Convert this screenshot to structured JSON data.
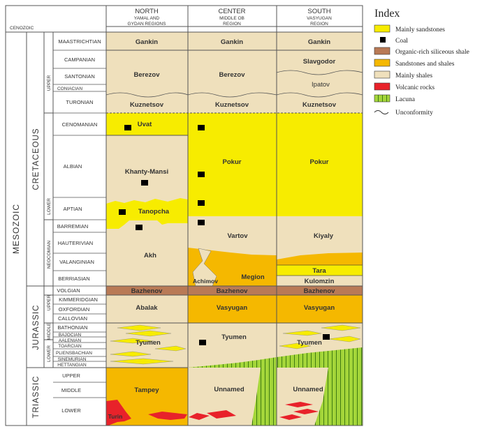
{
  "title": "",
  "header": {
    "cenozoic": "CENOZOIC",
    "columns": [
      {
        "title": "NORTH",
        "subtitle1": "YAMAL AND",
        "subtitle2": "GYDAN REGIONS"
      },
      {
        "title": "CENTER",
        "subtitle1": "MIDDLE OB",
        "subtitle2": "REGION"
      },
      {
        "title": "SOUTH",
        "subtitle1": "VASYUGAN",
        "subtitle2": "REGION"
      }
    ]
  },
  "eras": {
    "mesozoic": "MESOZOIC"
  },
  "periods": {
    "cretaceous": "CRETACEOUS",
    "jurassic": "JURASSIC",
    "triassic": "TRIASSIC"
  },
  "subdivisions": {
    "upper_k": "UPPER",
    "lower_k": "LOWER",
    "neocomian": "NEOCOMIAN",
    "upper_j": "UPPER",
    "middle_j": "MIDDLE",
    "lower_j": "LOWER"
  },
  "stages": {
    "maastrichtian": "MAASTRICHTIAN",
    "campanian": "CAMPANIAN",
    "santonian": "SANTONIAN",
    "coniacian": "CONIACIAN",
    "turonian": "TURONIAN",
    "cenomanian": "CENOMANIAN",
    "albian": "ALBIAN",
    "aptian": "APTIAN",
    "barremian": "BARREMIAN",
    "hauterivian": "HAUTERIVIAN",
    "valanginian": "VALANGINIAN",
    "berriasian": "BERRIASIAN",
    "volgian": "VOLGIAN",
    "kimmeridgian": "KIMMERIDGIAN",
    "oxfordian": "OXFORDIAN",
    "callovian": "CALLOVIAN",
    "bathonian": "BATHONIAN",
    "bajocian": "BAJOCIAN",
    "aalenian": "AALENIAN",
    "toarcian": "TOARCIAN",
    "pliensbachian": "PLIENSBACHIAN",
    "sinemurian": "SINEMURIAN",
    "hettangian": "HETTANGIAN",
    "tr_upper": "UPPER",
    "tr_middle": "MIDDLE",
    "tr_lower": "LOWER"
  },
  "formations": {
    "gankin": "Gankin",
    "berezov": "Berezov",
    "slavgodor": "Slavgodor",
    "ipatov": "Ipatov",
    "kuznetsov": "Kuznetsov",
    "uvat": "Uvat",
    "khanty_mansi": "Khanty-Mansi",
    "pokur": "Pokur",
    "tanopcha": "Tanopcha",
    "vartov": "Vartov",
    "kiyaly": "Kiyaly",
    "akh": "Akh",
    "achimov": "Achimov",
    "megion": "Megion",
    "tara": "Tara",
    "kulomzin": "Kulomzin",
    "bazhenov": "Bazhenov",
    "abalak": "Abalak",
    "vasyugan": "Vasyugan",
    "tyumen": "Tyumen",
    "tampey": "Tampey",
    "unnamed": "Unnamed",
    "turin": "Turin"
  },
  "legend": {
    "title": "Index",
    "items": [
      {
        "label": "Mainly sandstones",
        "color": "#f7ec00"
      },
      {
        "label": "Coal",
        "color": "#000000"
      },
      {
        "label": "Organic-rich siliceous shale",
        "color": "#b97a56"
      },
      {
        "label": "Sandstones and shales",
        "color": "#f5b800"
      },
      {
        "label": "Mainly shales",
        "color": "#efe0bc"
      },
      {
        "label": "Volcanic rocks",
        "color": "#e8222a"
      },
      {
        "label": "Lacuna",
        "color": "#a4d63a"
      },
      {
        "label": "Unconformity",
        "color": ""
      }
    ]
  },
  "colors": {
    "sandstone": "#f7ec00",
    "coal": "#000000",
    "siliceous_shale": "#b97a56",
    "sand_shale": "#f5b800",
    "shale": "#efe0bc",
    "volcanic": "#e8222a",
    "lacuna": "#a4d63a"
  }
}
